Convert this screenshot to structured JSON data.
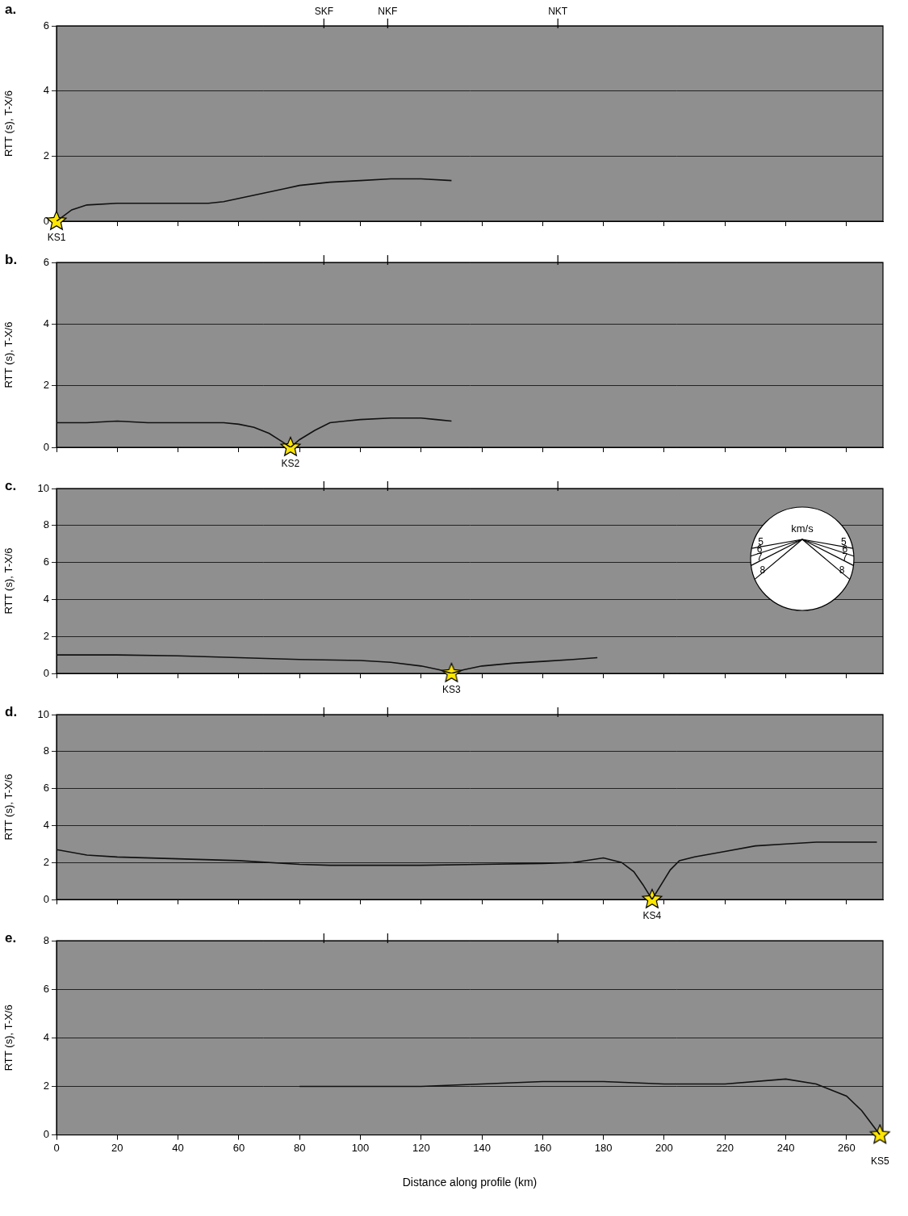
{
  "fault_markers": [
    {
      "label": "SKF",
      "x": 88
    },
    {
      "label": "NKF",
      "x": 109
    },
    {
      "label": "NKT",
      "x": 165
    }
  ],
  "chart_data": [
    {
      "type": "scatter",
      "label": "a.",
      "y_label": "RTT (s), T-X/6",
      "tick_labels": "y",
      "grid": true,
      "xlim": [
        0,
        272
      ],
      "xticks": [
        0,
        20,
        40,
        60,
        80,
        100,
        120,
        140,
        160,
        180,
        200,
        220,
        240,
        260
      ],
      "ylim": [
        0,
        6
      ],
      "yticks": [
        0,
        2,
        4,
        6
      ],
      "shot": {
        "label": "KS1",
        "x": 0,
        "y": 0,
        "color": "#ffe600"
      },
      "series": [
        {
          "color": "#111111",
          "x": [
            0,
            5,
            10,
            20,
            30,
            40,
            50,
            55,
            60,
            65,
            70,
            75,
            80,
            85,
            90,
            100,
            110,
            120,
            130
          ],
          "values": [
            0,
            0.35,
            0.5,
            0.55,
            0.55,
            0.55,
            0.55,
            0.6,
            0.7,
            0.8,
            0.9,
            1.0,
            1.1,
            1.15,
            1.2,
            1.25,
            1.3,
            1.3,
            1.25
          ]
        }
      ]
    },
    {
      "type": "scatter",
      "label": "b.",
      "y_label": "RTT (s), T-X/6",
      "tick_labels": "y",
      "grid": true,
      "xlim": [
        0,
        272
      ],
      "xticks": [
        0,
        20,
        40,
        60,
        80,
        100,
        120,
        140,
        160,
        180,
        200,
        220,
        240,
        260
      ],
      "ylim": [
        0,
        6
      ],
      "yticks": [
        0,
        2,
        4,
        6
      ],
      "shot": {
        "label": "KS2",
        "x": 77,
        "y": 0,
        "color": "#ffe600"
      },
      "series": [
        {
          "color": "#111111",
          "x": [
            0,
            10,
            20,
            30,
            40,
            50,
            55,
            60,
            65,
            70,
            74,
            77,
            80,
            85,
            90,
            95,
            100,
            110,
            115,
            120,
            125,
            130
          ],
          "values": [
            0.8,
            0.8,
            0.85,
            0.8,
            0.8,
            0.8,
            0.8,
            0.75,
            0.65,
            0.45,
            0.2,
            0,
            0.25,
            0.55,
            0.8,
            0.85,
            0.9,
            0.95,
            0.95,
            0.95,
            0.9,
            0.85
          ]
        }
      ]
    },
    {
      "type": "scatter",
      "label": "c.",
      "y_label": "RTT (s), T-X/6",
      "tick_labels": "y",
      "grid": true,
      "xlim": [
        0,
        272
      ],
      "xticks": [
        0,
        20,
        40,
        60,
        80,
        100,
        120,
        140,
        160,
        180,
        200,
        220,
        240,
        260
      ],
      "ylim": [
        0,
        10
      ],
      "yticks": [
        0,
        2,
        4,
        6,
        8,
        10
      ],
      "shot": {
        "label": "KS3",
        "x": 130,
        "y": 0,
        "color": "#ffe600"
      },
      "velocity_legend": {
        "title": "km/s",
        "velocities": [
          5,
          6,
          7,
          8
        ]
      },
      "series": [
        {
          "color": "#111111",
          "x": [
            0,
            20,
            40,
            60,
            80,
            100,
            110,
            120,
            126,
            130,
            134,
            140,
            150,
            160,
            170,
            178
          ],
          "values": [
            1.0,
            1.0,
            0.95,
            0.85,
            0.75,
            0.7,
            0.6,
            0.4,
            0.2,
            0,
            0.2,
            0.4,
            0.55,
            0.65,
            0.75,
            0.85
          ]
        }
      ]
    },
    {
      "type": "scatter",
      "label": "d.",
      "y_label": "RTT (s), T-X/6",
      "tick_labels": "y",
      "grid": true,
      "xlim": [
        0,
        272
      ],
      "xticks": [
        0,
        20,
        40,
        60,
        80,
        100,
        120,
        140,
        160,
        180,
        200,
        220,
        240,
        260
      ],
      "ylim": [
        0,
        10
      ],
      "yticks": [
        0,
        2,
        4,
        6,
        8,
        10
      ],
      "shot": {
        "label": "KS4",
        "x": 196,
        "y": 0,
        "color": "#ffe600"
      },
      "series": [
        {
          "color": "#111111",
          "x": [
            0,
            10,
            20,
            40,
            60,
            80,
            90,
            100,
            120,
            140,
            160,
            170,
            180,
            186,
            190,
            193,
            196,
            199,
            202,
            205,
            210,
            220,
            230,
            240,
            250,
            260,
            270
          ],
          "values": [
            2.7,
            2.4,
            2.3,
            2.2,
            2.1,
            1.9,
            1.85,
            1.85,
            1.85,
            1.9,
            1.95,
            2.0,
            2.25,
            2.0,
            1.5,
            0.8,
            0,
            0.8,
            1.6,
            2.1,
            2.3,
            2.6,
            2.9,
            3.0,
            3.1,
            3.1,
            3.1
          ]
        }
      ]
    },
    {
      "type": "scatter",
      "label": "e.",
      "y_label": "RTT (s), T-X/6",
      "x_label": "Distance along profile (km)",
      "grid": true,
      "xlim": [
        0,
        272
      ],
      "xticks": [
        0,
        20,
        40,
        60,
        80,
        100,
        120,
        140,
        160,
        180,
        200,
        220,
        240,
        260
      ],
      "ylim": [
        0,
        8
      ],
      "yticks": [
        0,
        2,
        4,
        6,
        8
      ],
      "shot": {
        "label": "KS5",
        "x": 271,
        "y": 0,
        "color": "#ffe600"
      },
      "series": [
        {
          "color": "#111111",
          "x": [
            80,
            100,
            120,
            140,
            160,
            180,
            200,
            220,
            240,
            250,
            260,
            265,
            271
          ],
          "values": [
            2.0,
            2.0,
            2.0,
            2.1,
            2.2,
            2.2,
            2.1,
            2.1,
            2.3,
            2.1,
            1.6,
            1.0,
            0
          ]
        }
      ]
    }
  ]
}
